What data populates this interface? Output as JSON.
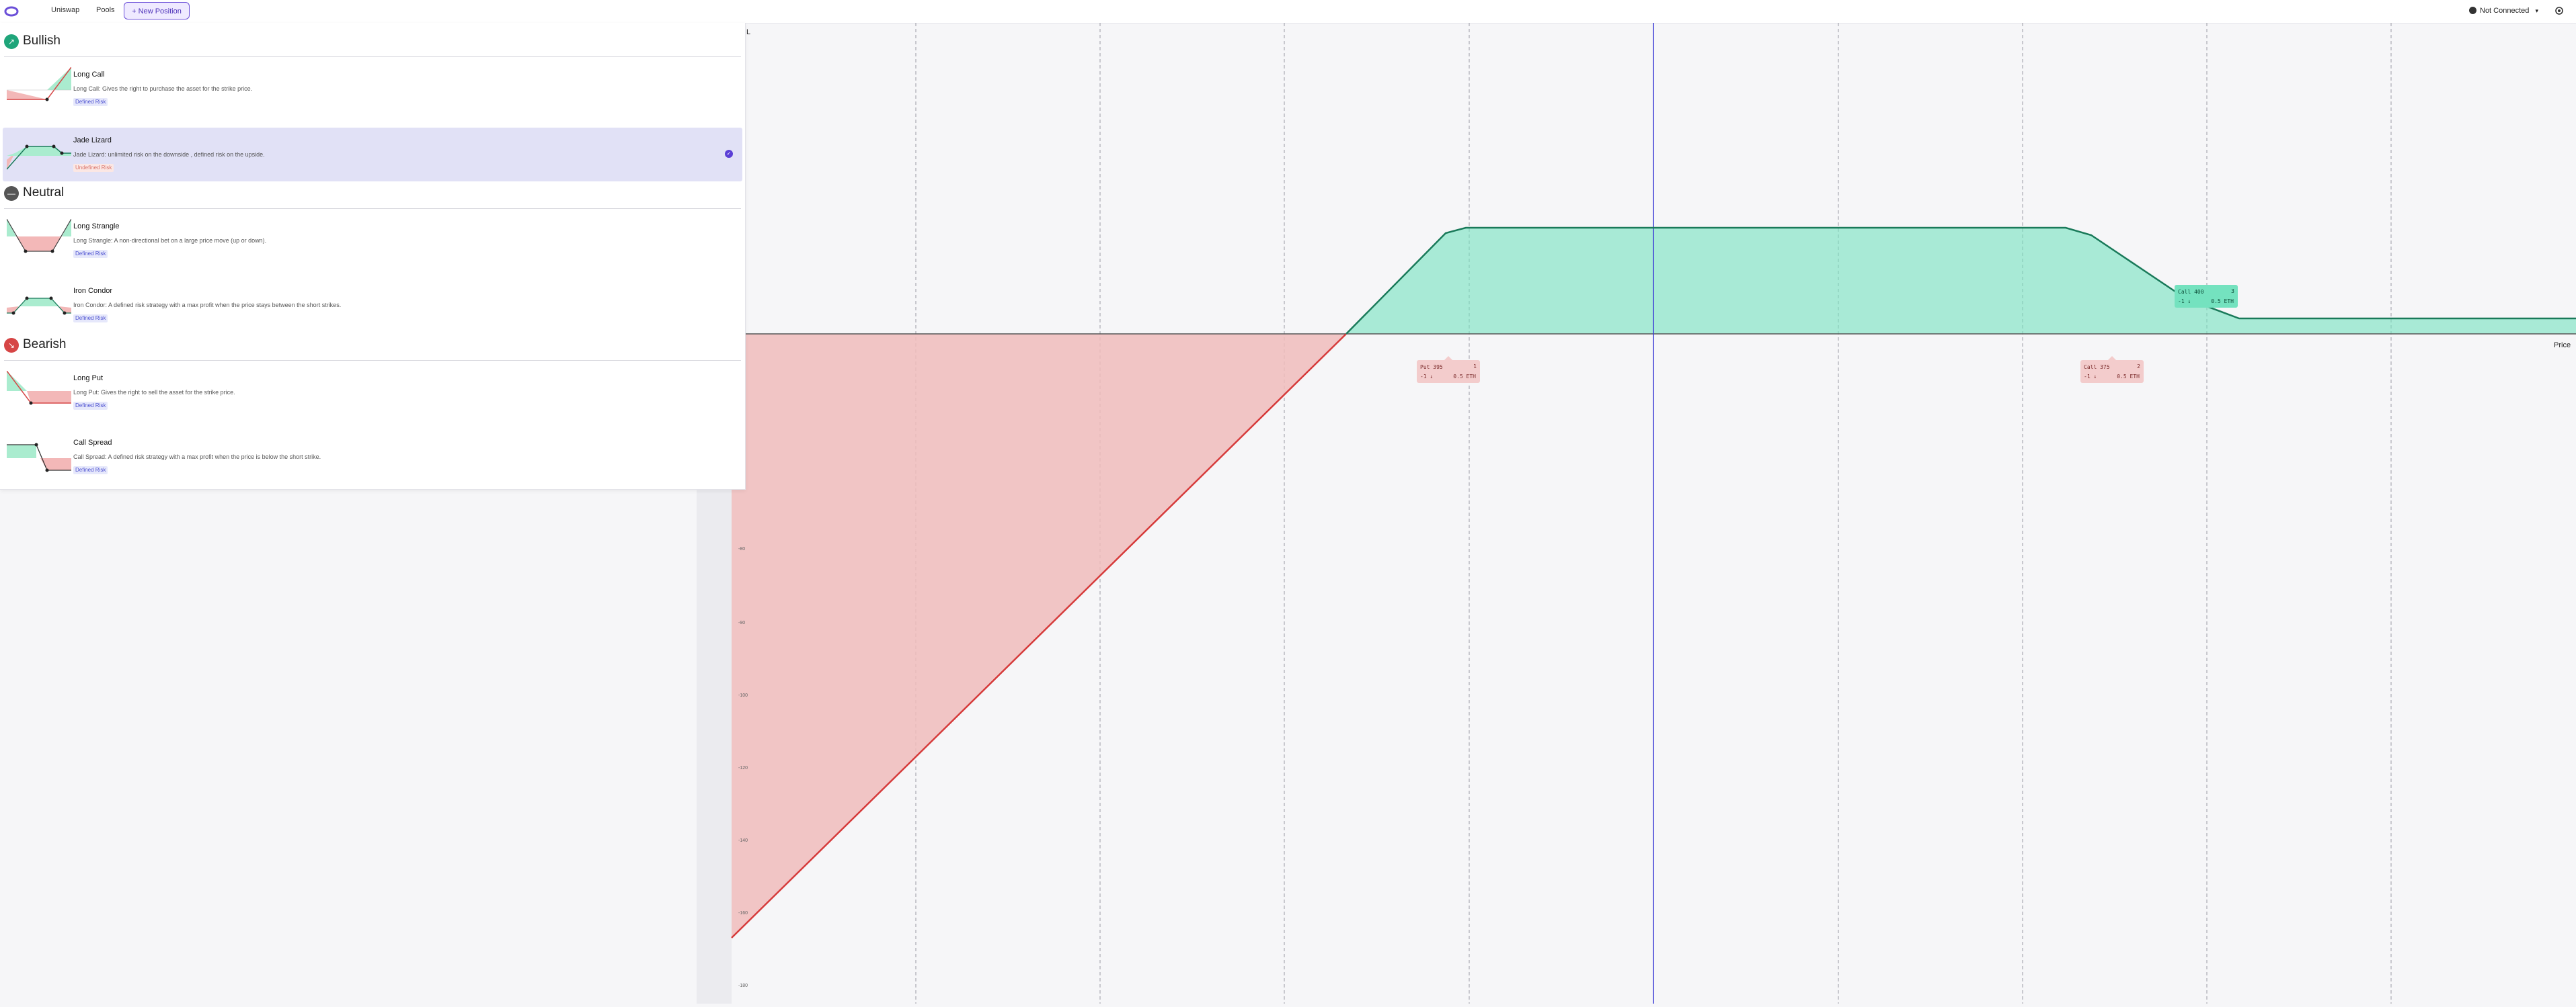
{
  "header": {
    "nav": [
      "Uniswap",
      "Pools"
    ],
    "new_position_label": "+ New Position",
    "connection_label": "Not Connected",
    "connection_icon": "wallet-icon",
    "settings_icon": "gear-icon"
  },
  "panel": {
    "sections": [
      {
        "title": "Bullish",
        "icon": "trend-up-icon",
        "color": "#1fa57a",
        "items": [
          {
            "name": "Long Call",
            "desc": "Long Call: Gives the right to purchase the asset for the strike price.",
            "risk": "Defined Risk",
            "selected": false
          },
          {
            "name": "Jade Lizard",
            "desc": "Jade Lizard: unlimited risk on the downside , defined risk on the upside.",
            "risk": "Undefined Risk",
            "selected": true
          }
        ]
      },
      {
        "title": "Neutral",
        "icon": "minus-icon",
        "color": "#555555",
        "items": [
          {
            "name": "Long Strangle",
            "desc": "Long Strangle: A non-directional bet on a large price move (up or down).",
            "risk": "Defined Risk",
            "selected": false
          },
          {
            "name": "Iron Condor",
            "desc": "Iron Condor: A defined risk strategy with a max profit when the price stays between the short strikes.",
            "risk": "Defined Risk",
            "selected": false
          }
        ]
      },
      {
        "title": "Bearish",
        "icon": "trend-down-icon",
        "color": "#d64545",
        "items": [
          {
            "name": "Long Put",
            "desc": "Long Put: Gives the right to sell the asset for the strike price.",
            "risk": "Defined Risk",
            "selected": false
          },
          {
            "name": "Call Spread",
            "desc": "Call Spread: A defined risk strategy with a max profit when the price is below the short strike.",
            "risk": "Defined Risk",
            "selected": false
          }
        ]
      }
    ]
  },
  "chart_data": {
    "type": "area",
    "ylabel": "L",
    "xlabel": "Price",
    "yticks": [
      "-80",
      "-90",
      "-100",
      "-120",
      "-140",
      "-160",
      "-180"
    ],
    "legs": [
      {
        "title": "Put 395",
        "qty": "-1 ↓",
        "size": "0.5 ETH",
        "tag": "1",
        "style": "red"
      },
      {
        "title": "Call 375",
        "qty": "-1 ↓",
        "size": "0.5 ETH",
        "tag": "2",
        "style": "red"
      },
      {
        "title": "Call 400",
        "qty": "-1 ↓",
        "size": "0.5 ETH",
        "tag": "3",
        "style": "green"
      }
    ],
    "profit_color": "#74e2bf",
    "loss_color": "#f0bcbc",
    "current_price_line_color": "#3b3bd6"
  }
}
